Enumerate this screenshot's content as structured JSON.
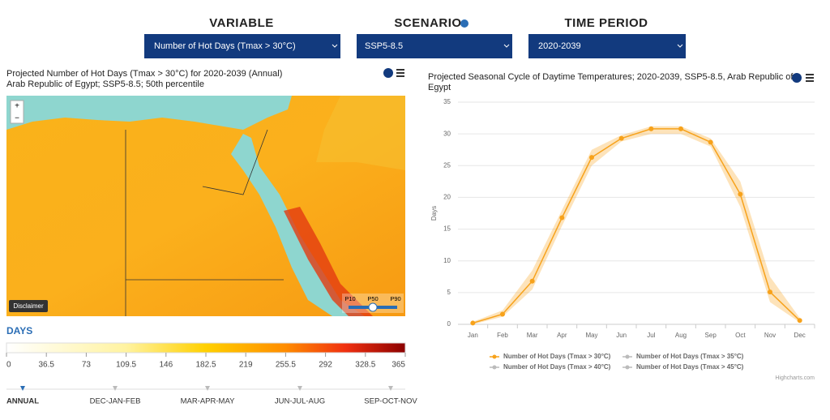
{
  "header": {
    "variable": {
      "label": "VARIABLE",
      "selected": "Number of Hot Days (Tmax > 30°C)"
    },
    "scenario": {
      "label": "SCENARIO",
      "selected": "SSP5-8.5"
    },
    "period": {
      "label": "TIME PERIOD",
      "selected": "2020-2039"
    }
  },
  "map": {
    "title": [
      "Projected Number of Hot Days (Tmax > 30°C) for 2020-2039 (Annual)",
      "Arab Republic of Egypt; SSP5-8.5; 50th percentile"
    ],
    "zoom_in": "+",
    "zoom_out": "−",
    "disclaimer": "Disclaimer",
    "percentiles": [
      "P10",
      "P50",
      "P90"
    ],
    "colorbar": {
      "label": "DAYS",
      "ticks": [
        0,
        36.5,
        73,
        109.5,
        146,
        182.5,
        219,
        255.5,
        292,
        328.5,
        365
      ]
    }
  },
  "periods": [
    "ANNUAL",
    "DEC-JAN-FEB",
    "MAR-APR-MAY",
    "JUN-JUL-AUG",
    "SEP-OCT-NOV"
  ],
  "chart_data": {
    "type": "line",
    "title": [
      "Projected Seasonal Cycle of Daytime Temperatures; 2020-2039, SSP5-8.5, Arab Republic of",
      "Egypt"
    ],
    "ylabel": "Days",
    "categories": [
      "Jan",
      "Feb",
      "Mar",
      "Apr",
      "May",
      "Jun",
      "Jul",
      "Aug",
      "Sep",
      "Oct",
      "Nov",
      "Dec"
    ],
    "series": [
      {
        "name": "Number of Hot Days (Tmax > 30°C)",
        "color": "#f7a21b",
        "values": [
          0.2,
          1.6,
          6.8,
          16.8,
          26.3,
          29.3,
          30.8,
          30.8,
          28.7,
          20.5,
          5.1,
          0.6
        ],
        "low": [
          0,
          1.2,
          5.5,
          15.5,
          25,
          28.8,
          30,
          30,
          28,
          18.5,
          3.5,
          0.3
        ],
        "high": [
          0.4,
          2.2,
          8.5,
          18,
          27.5,
          29.8,
          31.2,
          31.2,
          29.3,
          22.5,
          7.5,
          1.0
        ]
      }
    ],
    "legend": [
      {
        "name": "Number of Hot Days (Tmax > 35°C)",
        "color": "#bbbbbb"
      },
      {
        "name": "Number of Hot Days (Tmax > 40°C)",
        "color": "#bbbbbb"
      },
      {
        "name": "Number of Hot Days (Tmax > 45°C)",
        "color": "#bbbbbb"
      }
    ],
    "ylim": [
      0,
      35
    ],
    "yticks": [
      0,
      5,
      10,
      15,
      20,
      25,
      30,
      35
    ],
    "grid": true,
    "credits": "Highcharts.com"
  }
}
